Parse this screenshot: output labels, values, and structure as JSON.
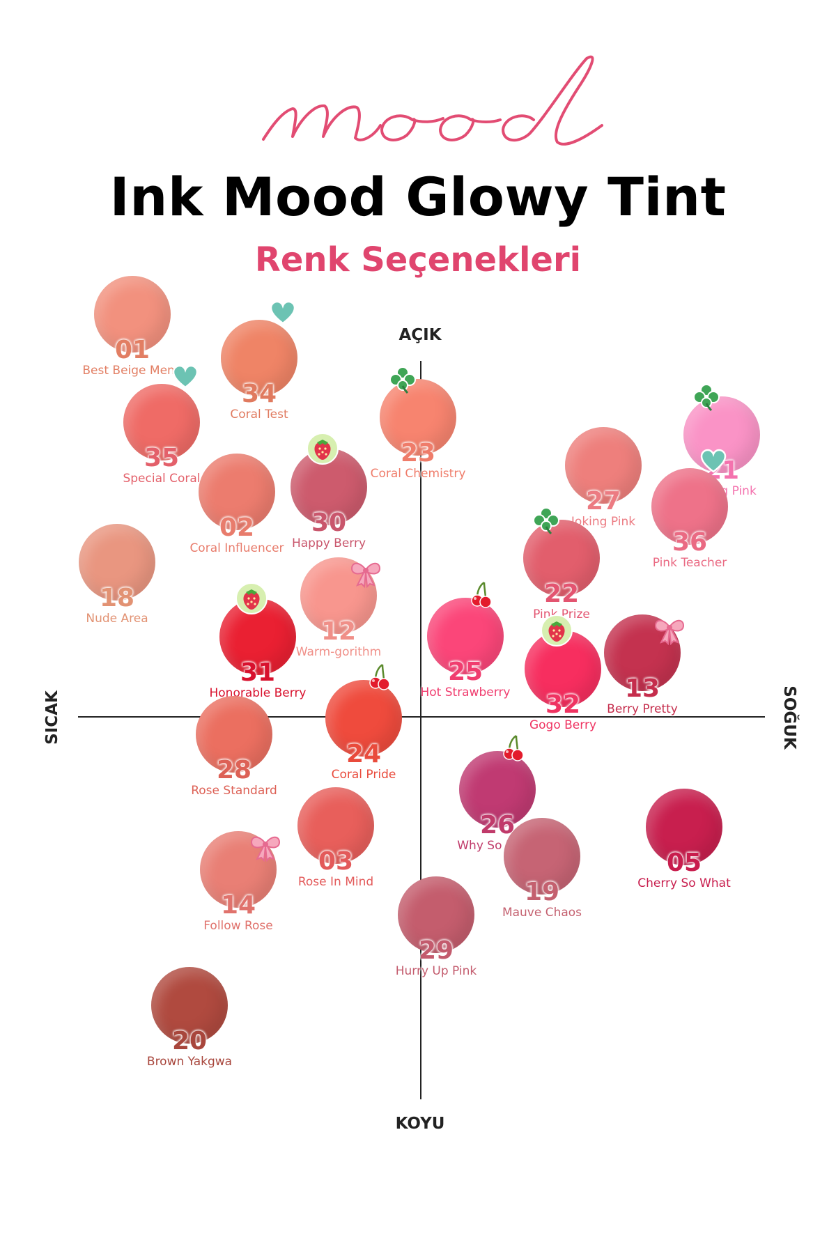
{
  "header": {
    "logo_text": "mood",
    "title": "Ink Mood Glowy Tint",
    "subtitle": "Renk Seçenekleri"
  },
  "axes": {
    "top": "AÇIK",
    "bottom": "KOYU",
    "left": "SICAK",
    "right": "SOĞUK"
  },
  "colors": {
    "logo": "#e24c73",
    "subtitle": "#e0456e",
    "axis": "#222222"
  },
  "shades": [
    {
      "num": "01",
      "name": "Best Beige Menu",
      "color": "#f2917e",
      "text_color": "#e27e63",
      "icon": null
    },
    {
      "num": "34",
      "name": "Coral Test",
      "color": "#ef8466",
      "text_color": "#e07a5f",
      "icon": "heart-icon"
    },
    {
      "num": "35",
      "name": "Special Coral",
      "color": "#ef6b66",
      "text_color": "#e3606a",
      "icon": "heart-icon"
    },
    {
      "num": "23",
      "name": "Coral Chemistry",
      "color": "#f7846f",
      "text_color": "#ef7c6a",
      "icon": "clover-icon"
    },
    {
      "num": "02",
      "name": "Coral Influencer",
      "color": "#ec7c6e",
      "text_color": "#e87c6c",
      "icon": null
    },
    {
      "num": "30",
      "name": "Happy Berry",
      "color": "#cd5b6d",
      "text_color": "#c9566c",
      "icon": "strawberry-icon"
    },
    {
      "num": "21",
      "name": "Cooing Pink",
      "color": "#fa93c6",
      "text_color": "#f472ae",
      "icon": "clover-icon"
    },
    {
      "num": "27",
      "name": "Joking Pink",
      "color": "#ee7f7c",
      "text_color": "#ec7b82",
      "icon": null
    },
    {
      "num": "36",
      "name": "Pink Teacher",
      "color": "#ee7289",
      "text_color": "#ea6a83",
      "icon": "heart-icon"
    },
    {
      "num": "18",
      "name": "Nude Area",
      "color": "#e99680",
      "text_color": "#e29273",
      "icon": null
    },
    {
      "num": "12",
      "name": "Warm-gorithm",
      "color": "#f8968e",
      "text_color": "#f08f88",
      "icon": "bow-icon"
    },
    {
      "num": "22",
      "name": "Pink Prize",
      "color": "#e25e6c",
      "text_color": "#e35470",
      "icon": "clover-icon"
    },
    {
      "num": "31",
      "name": "Honorable Berry",
      "color": "#ea2032",
      "text_color": "#d8112d",
      "icon": "strawberry-icon"
    },
    {
      "num": "25",
      "name": "Hot Strawberry",
      "color": "#fb4679",
      "text_color": "#f03d6f",
      "icon": "cherry-icon"
    },
    {
      "num": "32",
      "name": "Gogo Berry",
      "color": "#f72e5f",
      "text_color": "#ef3361",
      "icon": "strawberry-icon"
    },
    {
      "num": "13",
      "name": "Berry Pretty",
      "color": "#c4324f",
      "text_color": "#c52d4c",
      "icon": "bow-icon"
    },
    {
      "num": "28",
      "name": "Rose Standard",
      "color": "#eb6f60",
      "text_color": "#dd6156",
      "icon": null
    },
    {
      "num": "24",
      "name": "Coral Pride",
      "color": "#ef4b3d",
      "text_color": "#e94b3c",
      "icon": "cherry-icon"
    },
    {
      "num": "26",
      "name": "Why So Berry",
      "color": "#c03a72",
      "text_color": "#c03a6a",
      "icon": "cherry-icon"
    },
    {
      "num": "05",
      "name": "Cherry So What",
      "color": "#c81f4e",
      "text_color": "#c81d4d",
      "icon": null
    },
    {
      "num": "03",
      "name": "Rose In Mind",
      "color": "#e85f5b",
      "text_color": "#e35a5a",
      "icon": null
    },
    {
      "num": "14",
      "name": "Follow Rose",
      "color": "#e97f75",
      "text_color": "#e0726c",
      "icon": "bow-icon"
    },
    {
      "num": "19",
      "name": "Mauve Chaos",
      "color": "#c66474",
      "text_color": "#c4606f",
      "icon": null
    },
    {
      "num": "29",
      "name": "Hurry Up Pink",
      "color": "#c45d6d",
      "text_color": "#c35b6d",
      "icon": null
    },
    {
      "num": "20",
      "name": "Brown Yakgwa",
      "color": "#b04a3f",
      "text_color": "#a8463c",
      "icon": null
    }
  ]
}
